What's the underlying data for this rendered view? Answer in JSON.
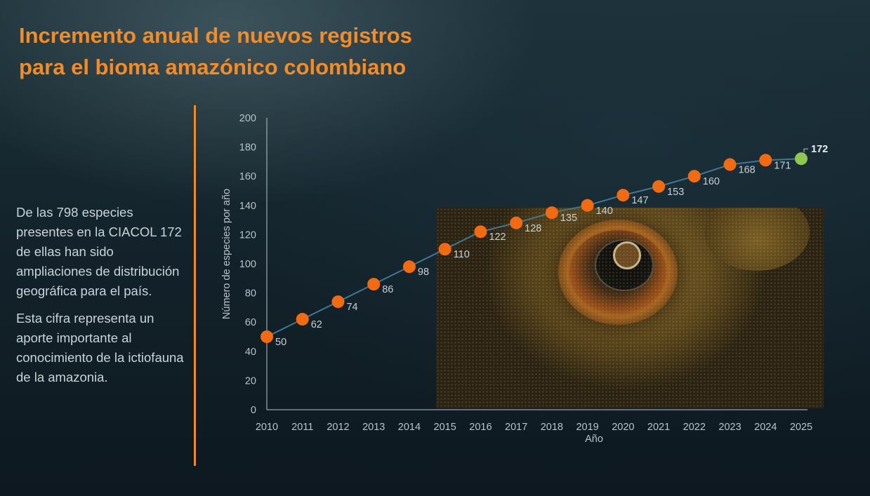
{
  "header": {
    "title_line1": "Incremento anual de nuevos registros",
    "title_line2": "para el bioma amazónico colombiano"
  },
  "sidebar": {
    "paragraph1": "De las 798 especies presentes en la CIACOL 172 de ellas han sido ampliaciones de distribución geográfica para el país.",
    "paragraph2": "Esta cifra representa un aporte importante al conocimiento de la ictiofauna de la amazonia."
  },
  "colors": {
    "accent": "#f08a24",
    "point": "#f26b12",
    "highlight_point": "#8fc850",
    "line": "#3f7794"
  },
  "chart_data": {
    "type": "line",
    "title": "Incremento anual de nuevos registros para el bioma amazónico colombiano",
    "xlabel": "Año",
    "ylabel": "Número de especies por año",
    "categories": [
      "2010",
      "2011",
      "2012",
      "2013",
      "2014",
      "2015",
      "2016",
      "2017",
      "2018",
      "2019",
      "2020",
      "2021",
      "2022",
      "2023",
      "2024",
      "2025"
    ],
    "series": [
      {
        "name": "Número de especies por año",
        "values": [
          50,
          62,
          74,
          86,
          98,
          110,
          122,
          128,
          135,
          140,
          147,
          153,
          160,
          168,
          171,
          172
        ]
      }
    ],
    "data_labels": [
      "50",
      "62",
      "74",
      "86",
      "98",
      "110",
      "122",
      "128",
      "135",
      "140",
      "147",
      "153",
      "160",
      "168",
      "171",
      "172"
    ],
    "y_ticks": [
      "0",
      "20",
      "40",
      "60",
      "80",
      "100",
      "120",
      "140",
      "160",
      "180",
      "200"
    ],
    "ylim": [
      0,
      200
    ],
    "grid": false,
    "legend": "none",
    "highlight_last": true
  }
}
